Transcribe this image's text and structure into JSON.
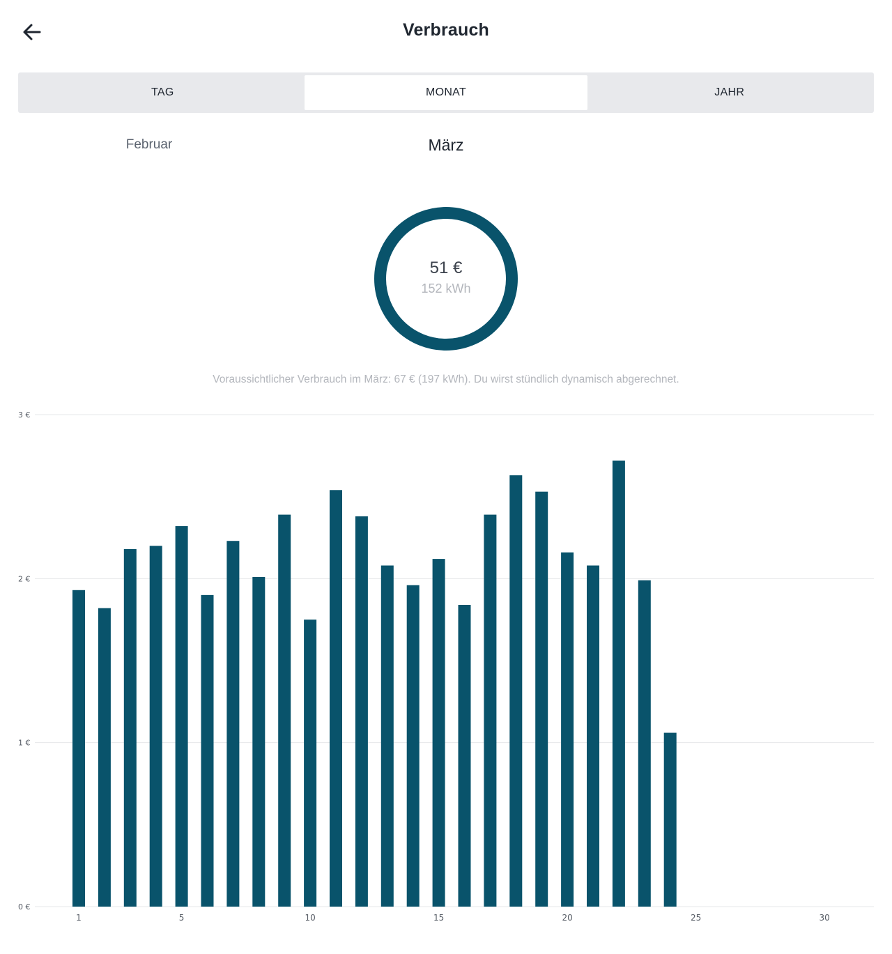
{
  "header": {
    "title": "Verbrauch",
    "back_icon": "arrow-left-icon"
  },
  "tabs": [
    {
      "label": "TAG",
      "active": false
    },
    {
      "label": "MONAT",
      "active": true
    },
    {
      "label": "JAHR",
      "active": false
    }
  ],
  "period": {
    "previous": "Februar",
    "current": "März"
  },
  "summary": {
    "cost": "51 €",
    "energy": "152 kWh",
    "ring_color": "#09536b"
  },
  "forecast_text": "Voraussichtlicher Verbrauch im März: 67 € (197 kWh). Du wirst stündlich dynamisch abgerechnet.",
  "colors": {
    "accent": "#09536b",
    "tab_background": "#e8e9ec",
    "muted_text": "#b3b6bc"
  },
  "chart_data": {
    "type": "bar",
    "categories": [
      1,
      2,
      3,
      4,
      5,
      6,
      7,
      8,
      9,
      10,
      11,
      12,
      13,
      14,
      15,
      16,
      17,
      18,
      19,
      20,
      21,
      22,
      23,
      24,
      25,
      26,
      27,
      28,
      29,
      30,
      31
    ],
    "values": [
      1.93,
      1.82,
      2.18,
      2.2,
      2.32,
      1.9,
      2.23,
      2.01,
      2.39,
      1.75,
      2.54,
      2.38,
      2.08,
      1.96,
      2.12,
      1.84,
      2.39,
      2.63,
      2.53,
      2.16,
      2.08,
      2.72,
      1.99,
      1.06,
      null,
      null,
      null,
      null,
      null,
      null,
      null
    ],
    "x_tick_labels": [
      "1",
      "5",
      "10",
      "15",
      "20",
      "25",
      "30"
    ],
    "x_tick_values": [
      1,
      5,
      10,
      15,
      20,
      25,
      30
    ],
    "y_tick_labels": [
      "0 €",
      "1 €",
      "2 €",
      "3 €"
    ],
    "y_tick_values": [
      0,
      1,
      2,
      3
    ],
    "ylim": [
      0,
      3
    ],
    "grid": true,
    "color": "#09536b"
  }
}
